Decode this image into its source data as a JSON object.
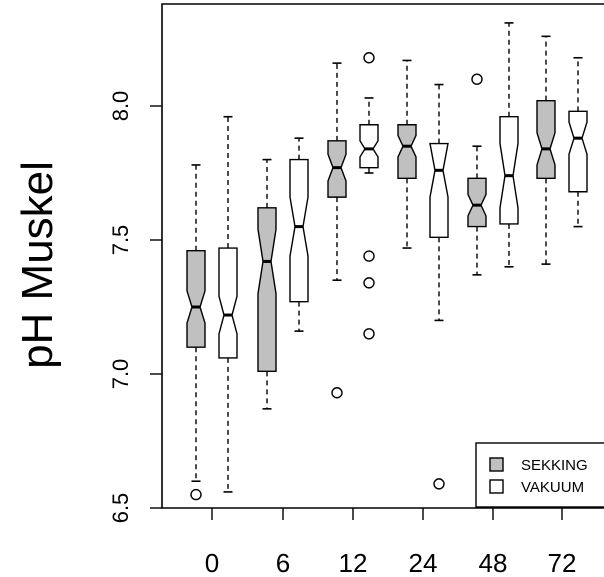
{
  "chart_data": {
    "type": "boxplot",
    "notched": true,
    "ylabel": "pH Muskel",
    "xlabel": "",
    "ylim": [
      6.5,
      8.3
    ],
    "yticks": [
      "6.5",
      "7.0",
      "7.5",
      "8.0"
    ],
    "ytick_values": [
      6.5,
      7.0,
      7.5,
      8.0
    ],
    "categories": [
      "0",
      "6",
      "12",
      "24",
      "48",
      "72"
    ],
    "legend_position": "bottom-right",
    "series": [
      {
        "name": "SEKKING",
        "color": "#c0c0c0",
        "boxes": [
          {
            "whisker_low": 6.6,
            "q1": 7.1,
            "median": 7.25,
            "q3": 7.46,
            "whisker_high": 7.78,
            "notch": [
              7.19,
              7.31
            ],
            "outliers": [
              6.55
            ]
          },
          {
            "whisker_low": 6.87,
            "q1": 7.01,
            "median": 7.42,
            "q3": 7.62,
            "whisker_high": 7.8,
            "notch": [
              7.3,
              7.54
            ],
            "outliers": []
          },
          {
            "whisker_low": 7.35,
            "q1": 7.66,
            "median": 7.77,
            "q3": 7.87,
            "whisker_high": 8.16,
            "notch": [
              7.72,
              7.82
            ],
            "outliers": [
              6.93
            ]
          },
          {
            "whisker_low": 7.47,
            "q1": 7.73,
            "median": 7.85,
            "q3": 7.93,
            "whisker_high": 8.17,
            "notch": [
              7.81,
              7.89
            ],
            "outliers": []
          },
          {
            "whisker_low": 7.37,
            "q1": 7.55,
            "median": 7.63,
            "q3": 7.73,
            "whisker_high": 7.85,
            "notch": [
              7.59,
              7.67
            ],
            "outliers": [
              8.1
            ]
          },
          {
            "whisker_low": 7.41,
            "q1": 7.73,
            "median": 7.84,
            "q3": 8.02,
            "whisker_high": 8.26,
            "notch": [
              7.78,
              7.9
            ],
            "outliers": []
          }
        ]
      },
      {
        "name": "VAKUUM",
        "color": "#ffffff",
        "boxes": [
          {
            "whisker_low": 6.56,
            "q1": 7.06,
            "median": 7.22,
            "q3": 7.47,
            "whisker_high": 7.96,
            "notch": [
              7.15,
              7.29
            ],
            "outliers": []
          },
          {
            "whisker_low": 7.16,
            "q1": 7.27,
            "median": 7.55,
            "q3": 7.8,
            "whisker_high": 7.88,
            "notch": [
              7.44,
              7.66
            ],
            "outliers": []
          },
          {
            "whisker_low": 7.75,
            "q1": 7.77,
            "median": 7.84,
            "q3": 7.93,
            "whisker_high": 8.03,
            "notch": [
              7.81,
              7.87
            ],
            "outliers": [
              8.18,
              7.44,
              7.34,
              7.15
            ]
          },
          {
            "whisker_low": 7.2,
            "q1": 7.51,
            "median": 7.76,
            "q3": 7.86,
            "whisker_high": 8.08,
            "notch": [
              7.66,
              7.86
            ],
            "outliers": [
              6.59
            ]
          },
          {
            "whisker_low": 7.4,
            "q1": 7.56,
            "median": 7.74,
            "q3": 7.96,
            "whisker_high": 8.31,
            "notch": [
              7.62,
              7.86
            ],
            "outliers": []
          },
          {
            "whisker_low": 7.55,
            "q1": 7.68,
            "median": 7.88,
            "q3": 7.98,
            "whisker_high": 8.18,
            "notch": [
              7.82,
              7.94
            ],
            "outliers": []
          }
        ]
      }
    ]
  }
}
